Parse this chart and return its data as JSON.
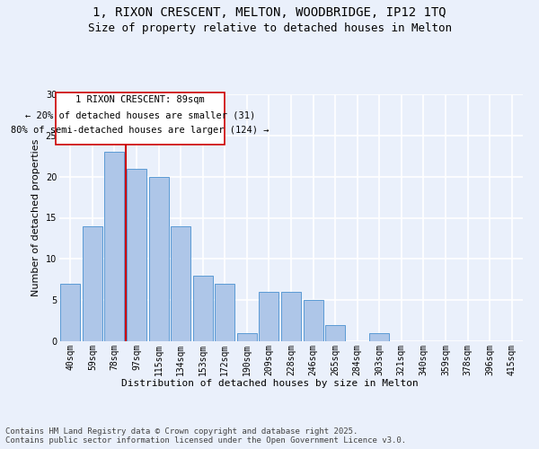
{
  "title_line1": "1, RIXON CRESCENT, MELTON, WOODBRIDGE, IP12 1TQ",
  "title_line2": "Size of property relative to detached houses in Melton",
  "categories": [
    "40sqm",
    "59sqm",
    "78sqm",
    "97sqm",
    "115sqm",
    "134sqm",
    "153sqm",
    "172sqm",
    "190sqm",
    "209sqm",
    "228sqm",
    "246sqm",
    "265sqm",
    "284sqm",
    "303sqm",
    "321sqm",
    "340sqm",
    "359sqm",
    "378sqm",
    "396sqm",
    "415sqm"
  ],
  "values": [
    7,
    14,
    23,
    21,
    20,
    14,
    8,
    7,
    1,
    6,
    6,
    5,
    2,
    0,
    1,
    0,
    0,
    0,
    0,
    0,
    0
  ],
  "bar_color": "#aec6e8",
  "bar_edge_color": "#5b9bd5",
  "annotation_line1": "1 RIXON CRESCENT: 89sqm",
  "annotation_line2": "← 20% of detached houses are smaller (31)",
  "annotation_line3": "80% of semi-detached houses are larger (124) →",
  "vline_x": 2.5,
  "vline_color": "#cc0000",
  "xlabel": "Distribution of detached houses by size in Melton",
  "ylabel": "Number of detached properties",
  "ylim": [
    0,
    30
  ],
  "yticks": [
    0,
    5,
    10,
    15,
    20,
    25,
    30
  ],
  "footer": "Contains HM Land Registry data © Crown copyright and database right 2025.\nContains public sector information licensed under the Open Government Licence v3.0.",
  "background_color": "#eaf0fb",
  "plot_bg_color": "#eaf0fb",
  "grid_color": "#ffffff",
  "title_fontsize": 10,
  "subtitle_fontsize": 9,
  "axis_label_fontsize": 8,
  "tick_fontsize": 7,
  "annotation_fontsize": 7.5,
  "footer_fontsize": 6.5
}
